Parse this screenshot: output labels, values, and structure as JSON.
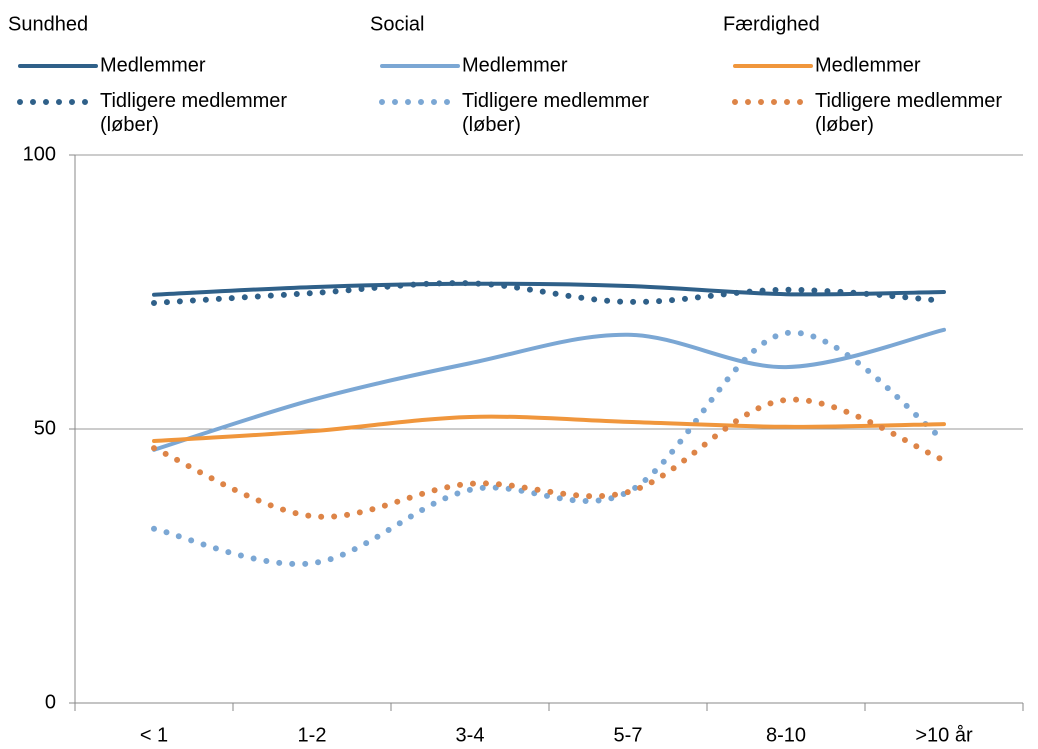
{
  "chart_data": {
    "type": "line",
    "categories": [
      "< 1",
      "1-2",
      "3-4",
      "5-7",
      "8-10",
      ">10 år"
    ],
    "ylim": [
      0,
      100
    ],
    "yticks": [
      0,
      50,
      100
    ],
    "grid": true,
    "smooth": true,
    "series_groups": [
      {
        "name": "Sundhed",
        "series": [
          {
            "name": "Medlemmer",
            "color": "#2f6089",
            "style": "solid",
            "values": [
              74.5,
              75.9,
              76.5,
              76.1,
              74.6,
              75.0
            ]
          },
          {
            "name": "Tidligere medlemmer (løber)",
            "color": "#2f6089",
            "style": "dotted",
            "values": [
              73.0,
              74.8,
              76.6,
              73.2,
              75.4,
              73.4
            ]
          }
        ]
      },
      {
        "name": "Social",
        "series": [
          {
            "name": "Medlemmer",
            "color": "#7ba7d4",
            "style": "solid",
            "values": [
              46.2,
              55.3,
              62.0,
              67.2,
              61.3,
              68.1
            ]
          },
          {
            "name": "Tidligere medlemmer (løber)",
            "color": "#7ba7d4",
            "style": "dotted",
            "values": [
              31.8,
              25.5,
              38.9,
              38.5,
              67.5,
              48.0
            ]
          }
        ]
      },
      {
        "name": "Færdighed",
        "series": [
          {
            "name": "Medlemmer",
            "color": "#f0963c",
            "style": "solid",
            "values": [
              47.8,
              49.6,
              52.2,
              51.3,
              50.4,
              50.9
            ]
          },
          {
            "name": "Tidligere medlemmer (løber)",
            "color": "#dd8447",
            "style": "dotted",
            "values": [
              46.5,
              34.1,
              40.0,
              38.5,
              55.3,
              44.3
            ]
          }
        ]
      }
    ]
  }
}
